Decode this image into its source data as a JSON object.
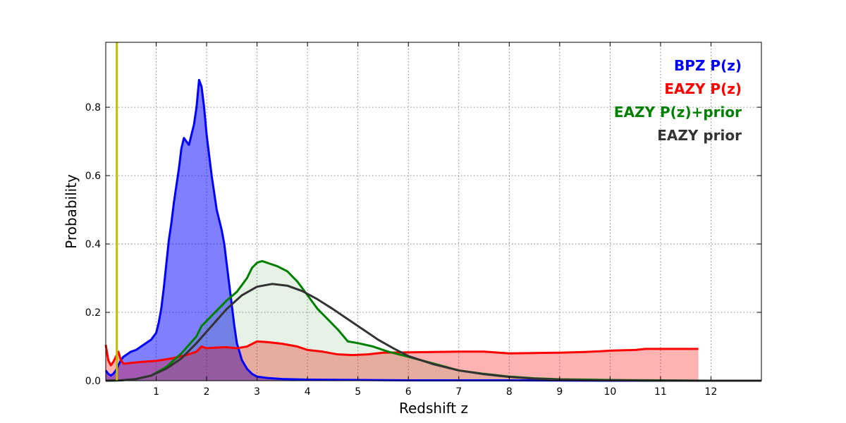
{
  "chart_data": {
    "type": "area",
    "title": "",
    "xlabel": "Redshift z",
    "ylabel": "Probability",
    "xlim": [
      0,
      13
    ],
    "ylim": [
      0,
      0.99
    ],
    "grid": true,
    "legend_placement": "top-right",
    "x_ticks": [
      1,
      2,
      3,
      4,
      5,
      6,
      7,
      8,
      9,
      10,
      11,
      12
    ],
    "y_ticks": [
      0.0,
      0.2,
      0.4,
      0.6,
      0.8
    ],
    "y_tick_labels": [
      "0.0",
      "0.2",
      "0.4",
      "0.6",
      "0.8"
    ],
    "vertical_marker": {
      "x": 0.22,
      "color": "#bfbf00"
    },
    "series": [
      {
        "name": "BPZ P(z)",
        "color": "#0000ff",
        "fill": "#0000ff",
        "fill_opacity": 0.5,
        "x": [
          0.0,
          0.05,
          0.1,
          0.15,
          0.2,
          0.25,
          0.3,
          0.35,
          0.4,
          0.5,
          0.6,
          0.7,
          0.8,
          0.9,
          1.0,
          1.05,
          1.1,
          1.15,
          1.2,
          1.25,
          1.3,
          1.35,
          1.4,
          1.45,
          1.5,
          1.55,
          1.6,
          1.65,
          1.7,
          1.75,
          1.8,
          1.85,
          1.9,
          1.95,
          2.0,
          2.05,
          2.1,
          2.15,
          2.2,
          2.25,
          2.3,
          2.35,
          2.4,
          2.45,
          2.5,
          2.55,
          2.6,
          2.7,
          2.8,
          2.9,
          3.0,
          3.2,
          3.5,
          4.0,
          5.0,
          6.0,
          8.0,
          10.0,
          13.0
        ],
        "y": [
          0.03,
          0.02,
          0.015,
          0.02,
          0.03,
          0.045,
          0.06,
          0.07,
          0.075,
          0.085,
          0.09,
          0.1,
          0.11,
          0.12,
          0.14,
          0.17,
          0.21,
          0.27,
          0.34,
          0.41,
          0.46,
          0.52,
          0.57,
          0.62,
          0.68,
          0.71,
          0.7,
          0.69,
          0.72,
          0.75,
          0.8,
          0.88,
          0.86,
          0.8,
          0.72,
          0.66,
          0.6,
          0.55,
          0.5,
          0.47,
          0.44,
          0.4,
          0.34,
          0.28,
          0.22,
          0.16,
          0.11,
          0.06,
          0.035,
          0.02,
          0.012,
          0.008,
          0.005,
          0.003,
          0.002,
          0.001,
          0.001,
          0.0,
          0.0
        ]
      },
      {
        "name": "EAZY P(z)",
        "color": "#ff0000",
        "fill": "#ff0000",
        "fill_opacity": 0.3,
        "x": [
          0.0,
          0.05,
          0.1,
          0.15,
          0.2,
          0.25,
          0.3,
          0.35,
          0.4,
          0.5,
          0.7,
          1.0,
          1.3,
          1.6,
          1.8,
          1.9,
          2.0,
          2.2,
          2.4,
          2.6,
          2.8,
          3.0,
          3.2,
          3.5,
          3.8,
          4.0,
          4.3,
          4.6,
          4.9,
          5.2,
          5.5,
          6.0,
          6.5,
          7.0,
          7.5,
          8.0,
          8.5,
          9.0,
          9.5,
          9.8,
          10.0,
          10.5,
          10.7,
          11.0,
          11.5,
          11.75
        ],
        "y": [
          0.105,
          0.06,
          0.045,
          0.055,
          0.07,
          0.085,
          0.06,
          0.05,
          0.05,
          0.052,
          0.055,
          0.058,
          0.065,
          0.075,
          0.085,
          0.1,
          0.095,
          0.097,
          0.098,
          0.095,
          0.1,
          0.115,
          0.113,
          0.108,
          0.1,
          0.09,
          0.085,
          0.077,
          0.075,
          0.077,
          0.082,
          0.083,
          0.084,
          0.085,
          0.085,
          0.08,
          0.081,
          0.082,
          0.084,
          0.086,
          0.088,
          0.09,
          0.093,
          0.093,
          0.093,
          0.093
        ]
      },
      {
        "name": "EAZY P(z)+prior",
        "color": "#008000",
        "fill": "#008000",
        "fill_opacity": 0.1,
        "x": [
          0.0,
          0.3,
          0.6,
          0.9,
          1.2,
          1.5,
          1.8,
          1.9,
          2.0,
          2.2,
          2.4,
          2.6,
          2.8,
          2.9,
          3.0,
          3.1,
          3.2,
          3.4,
          3.6,
          3.8,
          4.0,
          4.2,
          4.4,
          4.6,
          4.8,
          5.0,
          5.3,
          5.6,
          6.0,
          6.5,
          7.0,
          7.5,
          8.0,
          8.5,
          9.0,
          10.0,
          11.0,
          12.0,
          13.0
        ],
        "y": [
          0.0,
          0.001,
          0.005,
          0.015,
          0.04,
          0.08,
          0.13,
          0.16,
          0.175,
          0.205,
          0.235,
          0.26,
          0.3,
          0.33,
          0.345,
          0.35,
          0.345,
          0.335,
          0.32,
          0.29,
          0.25,
          0.21,
          0.18,
          0.15,
          0.115,
          0.11,
          0.1,
          0.085,
          0.07,
          0.05,
          0.03,
          0.02,
          0.012,
          0.007,
          0.004,
          0.002,
          0.001,
          0.0,
          0.0
        ]
      },
      {
        "name": "EAZY prior",
        "color": "#333333",
        "fill": "none",
        "fill_opacity": 0,
        "x": [
          0.0,
          0.3,
          0.6,
          0.9,
          1.2,
          1.5,
          1.8,
          2.1,
          2.4,
          2.7,
          3.0,
          3.3,
          3.6,
          3.9,
          4.2,
          4.5,
          4.8,
          5.1,
          5.4,
          5.7,
          6.0,
          6.5,
          7.0,
          7.5,
          8.0,
          8.5,
          9.0,
          9.5,
          10.0,
          11.0,
          12.0,
          13.0
        ],
        "y": [
          0.0,
          0.001,
          0.005,
          0.015,
          0.035,
          0.065,
          0.11,
          0.16,
          0.21,
          0.25,
          0.275,
          0.283,
          0.278,
          0.262,
          0.238,
          0.21,
          0.18,
          0.15,
          0.12,
          0.095,
          0.072,
          0.048,
          0.03,
          0.019,
          0.011,
          0.006,
          0.003,
          0.0015,
          0.001,
          0.0,
          0.0,
          0.0
        ]
      }
    ]
  }
}
